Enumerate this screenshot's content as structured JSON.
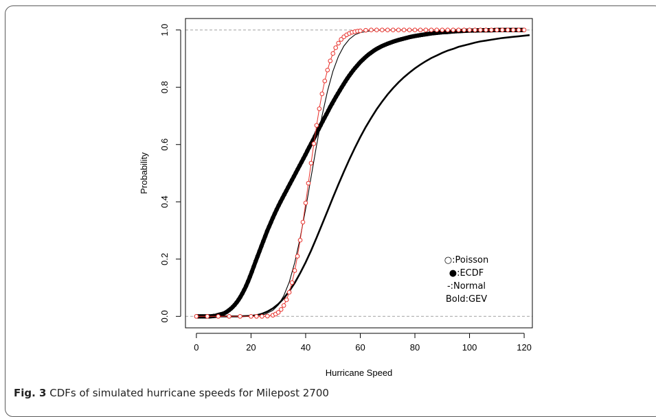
{
  "caption": {
    "label": "Fig. 3",
    "text": "CDFs of simulated hurricane speeds for Milepost 2700"
  },
  "chart_data": {
    "type": "line",
    "title": "",
    "xlabel": "Hurricane Speed",
    "ylabel": "Probability",
    "xlim": [
      -4,
      123
    ],
    "ylim": [
      -0.04,
      1.04
    ],
    "x_ticks": [
      0,
      20,
      40,
      60,
      80,
      100,
      120
    ],
    "y_ticks": [
      0.0,
      0.2,
      0.4,
      0.6,
      0.8,
      1.0
    ],
    "x_tick_labels": [
      "0",
      "20",
      "40",
      "60",
      "80",
      "100",
      "120"
    ],
    "y_tick_labels": [
      "0.0",
      "0.2",
      "0.4",
      "0.6",
      "0.8",
      "1.0"
    ],
    "reference_lines": [
      0,
      1
    ],
    "legend": {
      "placement": "bottom-right",
      "entries": [
        "○:Poisson",
        "●:ECDF",
        "-:Normal",
        "Bold:GEV"
      ]
    },
    "series": [
      {
        "name": "Poisson",
        "style": "open-circle",
        "color": "#e8302a",
        "x": [
          0,
          4,
          8,
          12,
          16,
          20,
          22,
          24,
          26,
          28,
          29,
          30,
          31,
          32,
          33,
          34,
          35,
          36,
          37,
          38,
          39,
          40,
          41,
          42,
          43,
          44,
          45,
          46,
          47,
          48,
          49,
          50,
          51,
          52,
          53,
          54,
          55,
          56,
          57,
          58,
          59,
          60,
          62,
          64,
          66,
          68,
          70,
          72,
          74,
          76,
          78,
          80,
          82,
          84,
          86,
          88,
          90,
          92,
          94,
          96,
          98,
          100,
          102,
          104,
          106,
          108,
          110,
          112,
          114,
          116,
          118,
          120
        ],
        "y": [
          0,
          0,
          0,
          0,
          0,
          0,
          0,
          0,
          0.001,
          0.004,
          0.008,
          0.014,
          0.024,
          0.038,
          0.058,
          0.084,
          0.118,
          0.16,
          0.21,
          0.266,
          0.329,
          0.396,
          0.465,
          0.535,
          0.603,
          0.667,
          0.725,
          0.777,
          0.822,
          0.86,
          0.892,
          0.918,
          0.938,
          0.954,
          0.967,
          0.976,
          0.983,
          0.988,
          0.992,
          0.994,
          0.996,
          0.997,
          0.999,
          1,
          1,
          1,
          1,
          1,
          1,
          1,
          1,
          1,
          1,
          1,
          1,
          1,
          1,
          1,
          1,
          1,
          1,
          1,
          1,
          1,
          1,
          1,
          1,
          1,
          1,
          1,
          1,
          1
        ]
      },
      {
        "name": "ECDF",
        "style": "filled-dot",
        "color": "#000000",
        "x": [
          0,
          2,
          5,
          7,
          8,
          10,
          11,
          12,
          13,
          14,
          15,
          16,
          17,
          18,
          19,
          20,
          21,
          22,
          23,
          24,
          25,
          26,
          27,
          28,
          29,
          30,
          31,
          32,
          33,
          34,
          35,
          36,
          37,
          38,
          39,
          40,
          41,
          42,
          43,
          44,
          45,
          46,
          47,
          48,
          49,
          50,
          51,
          52,
          53,
          54,
          55,
          56,
          57,
          58,
          59,
          60,
          61,
          62,
          63,
          64,
          65,
          66,
          67,
          68,
          69,
          70,
          72,
          74,
          76,
          78,
          80,
          82,
          84,
          86,
          88,
          90,
          92,
          94,
          96,
          98,
          100,
          102,
          104,
          106,
          108,
          110,
          112,
          114,
          116,
          118,
          120
        ],
        "y": [
          0,
          0,
          0,
          0.002,
          0.005,
          0.01,
          0.015,
          0.022,
          0.03,
          0.04,
          0.052,
          0.066,
          0.083,
          0.102,
          0.124,
          0.148,
          0.174,
          0.2,
          0.225,
          0.25,
          0.275,
          0.3,
          0.322,
          0.344,
          0.365,
          0.385,
          0.404,
          0.422,
          0.44,
          0.458,
          0.476,
          0.494,
          0.512,
          0.53,
          0.548,
          0.566,
          0.585,
          0.603,
          0.621,
          0.64,
          0.658,
          0.677,
          0.695,
          0.713,
          0.731,
          0.748,
          0.765,
          0.781,
          0.797,
          0.812,
          0.827,
          0.841,
          0.854,
          0.866,
          0.877,
          0.888,
          0.897,
          0.906,
          0.914,
          0.921,
          0.928,
          0.934,
          0.939,
          0.944,
          0.948,
          0.952,
          0.959,
          0.965,
          0.97,
          0.975,
          0.979,
          0.982,
          0.985,
          0.988,
          0.99,
          0.992,
          0.993,
          0.995,
          0.996,
          0.997,
          0.998,
          0.998,
          0.999,
          0.999,
          0.999,
          1,
          1,
          1,
          1,
          1,
          1
        ]
      },
      {
        "name": "Normal",
        "style": "thin-line",
        "color": "#000000",
        "x": [
          0,
          10,
          20,
          25,
          28,
          30,
          32,
          34,
          36,
          38,
          40,
          42,
          44,
          46,
          48,
          50,
          52,
          54,
          56,
          58,
          60,
          65,
          70,
          80,
          90,
          100,
          110,
          120
        ],
        "y": [
          0,
          0,
          0.001,
          0.007,
          0.021,
          0.04,
          0.072,
          0.12,
          0.188,
          0.274,
          0.376,
          0.487,
          0.598,
          0.7,
          0.787,
          0.856,
          0.908,
          0.944,
          0.968,
          0.983,
          0.991,
          0.999,
          1,
          1,
          1,
          1,
          1,
          1
        ]
      },
      {
        "name": "GEV",
        "style": "bold-line",
        "color": "#000000",
        "x": [
          0,
          10,
          15,
          20,
          22,
          24,
          26,
          28,
          30,
          32,
          34,
          36,
          38,
          40,
          42,
          44,
          46,
          48,
          50,
          52,
          54,
          56,
          58,
          60,
          62,
          64,
          66,
          68,
          70,
          72,
          74,
          76,
          78,
          80,
          82,
          84,
          86,
          88,
          90,
          92,
          94,
          96,
          98,
          100,
          102,
          104,
          106,
          108,
          110,
          112,
          114,
          116,
          118,
          120,
          122
        ],
        "y": [
          0,
          0,
          0,
          0.002,
          0.004,
          0.009,
          0.017,
          0.028,
          0.043,
          0.063,
          0.088,
          0.117,
          0.151,
          0.189,
          0.23,
          0.275,
          0.321,
          0.368,
          0.415,
          0.461,
          0.505,
          0.548,
          0.588,
          0.626,
          0.661,
          0.693,
          0.723,
          0.75,
          0.775,
          0.797,
          0.817,
          0.835,
          0.851,
          0.866,
          0.879,
          0.891,
          0.902,
          0.911,
          0.92,
          0.928,
          0.934,
          0.941,
          0.946,
          0.951,
          0.956,
          0.96,
          0.963,
          0.966,
          0.969,
          0.972,
          0.974,
          0.976,
          0.978,
          0.98,
          0.982
        ]
      }
    ]
  }
}
